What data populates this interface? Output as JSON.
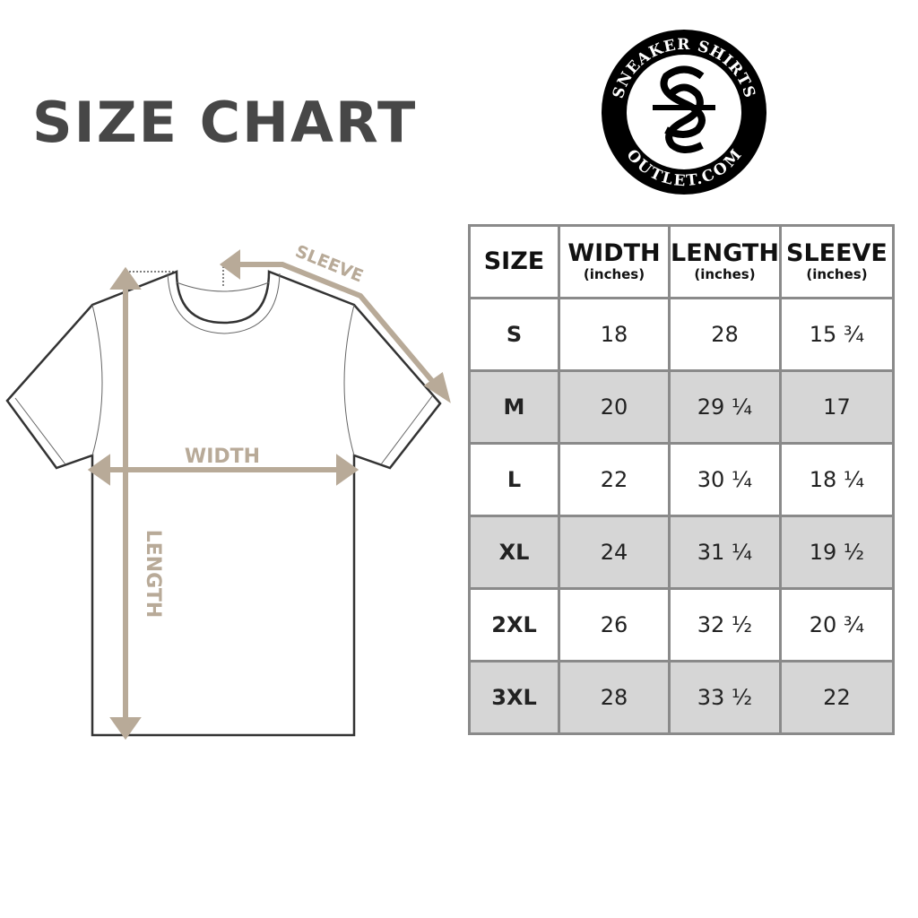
{
  "title": "SIZE CHART",
  "logo": {
    "top_text": "SNEAKER SHIRTS",
    "bottom_text": "OUTLET.COM"
  },
  "diagram": {
    "sleeve": "SLEEVE",
    "width": "WIDTH",
    "length": "LENGTH",
    "accent": "#b8aa98"
  },
  "table": {
    "headers": [
      {
        "label": "SIZE",
        "unit": ""
      },
      {
        "label": "WIDTH",
        "unit": "(inches)"
      },
      {
        "label": "LENGTH",
        "unit": "(inches)"
      },
      {
        "label": "SLEEVE",
        "unit": "(inches)"
      }
    ],
    "rows": [
      [
        "S",
        "18",
        "28",
        "15 ¾"
      ],
      [
        "M",
        "20",
        "29 ¼",
        "17"
      ],
      [
        "L",
        "22",
        "30 ¼",
        "18 ¼"
      ],
      [
        "XL",
        "24",
        "31 ¼",
        "19 ½"
      ],
      [
        "2XL",
        "26",
        "32 ½",
        "20 ¾"
      ],
      [
        "3XL",
        "28",
        "33 ½",
        "22"
      ]
    ]
  }
}
